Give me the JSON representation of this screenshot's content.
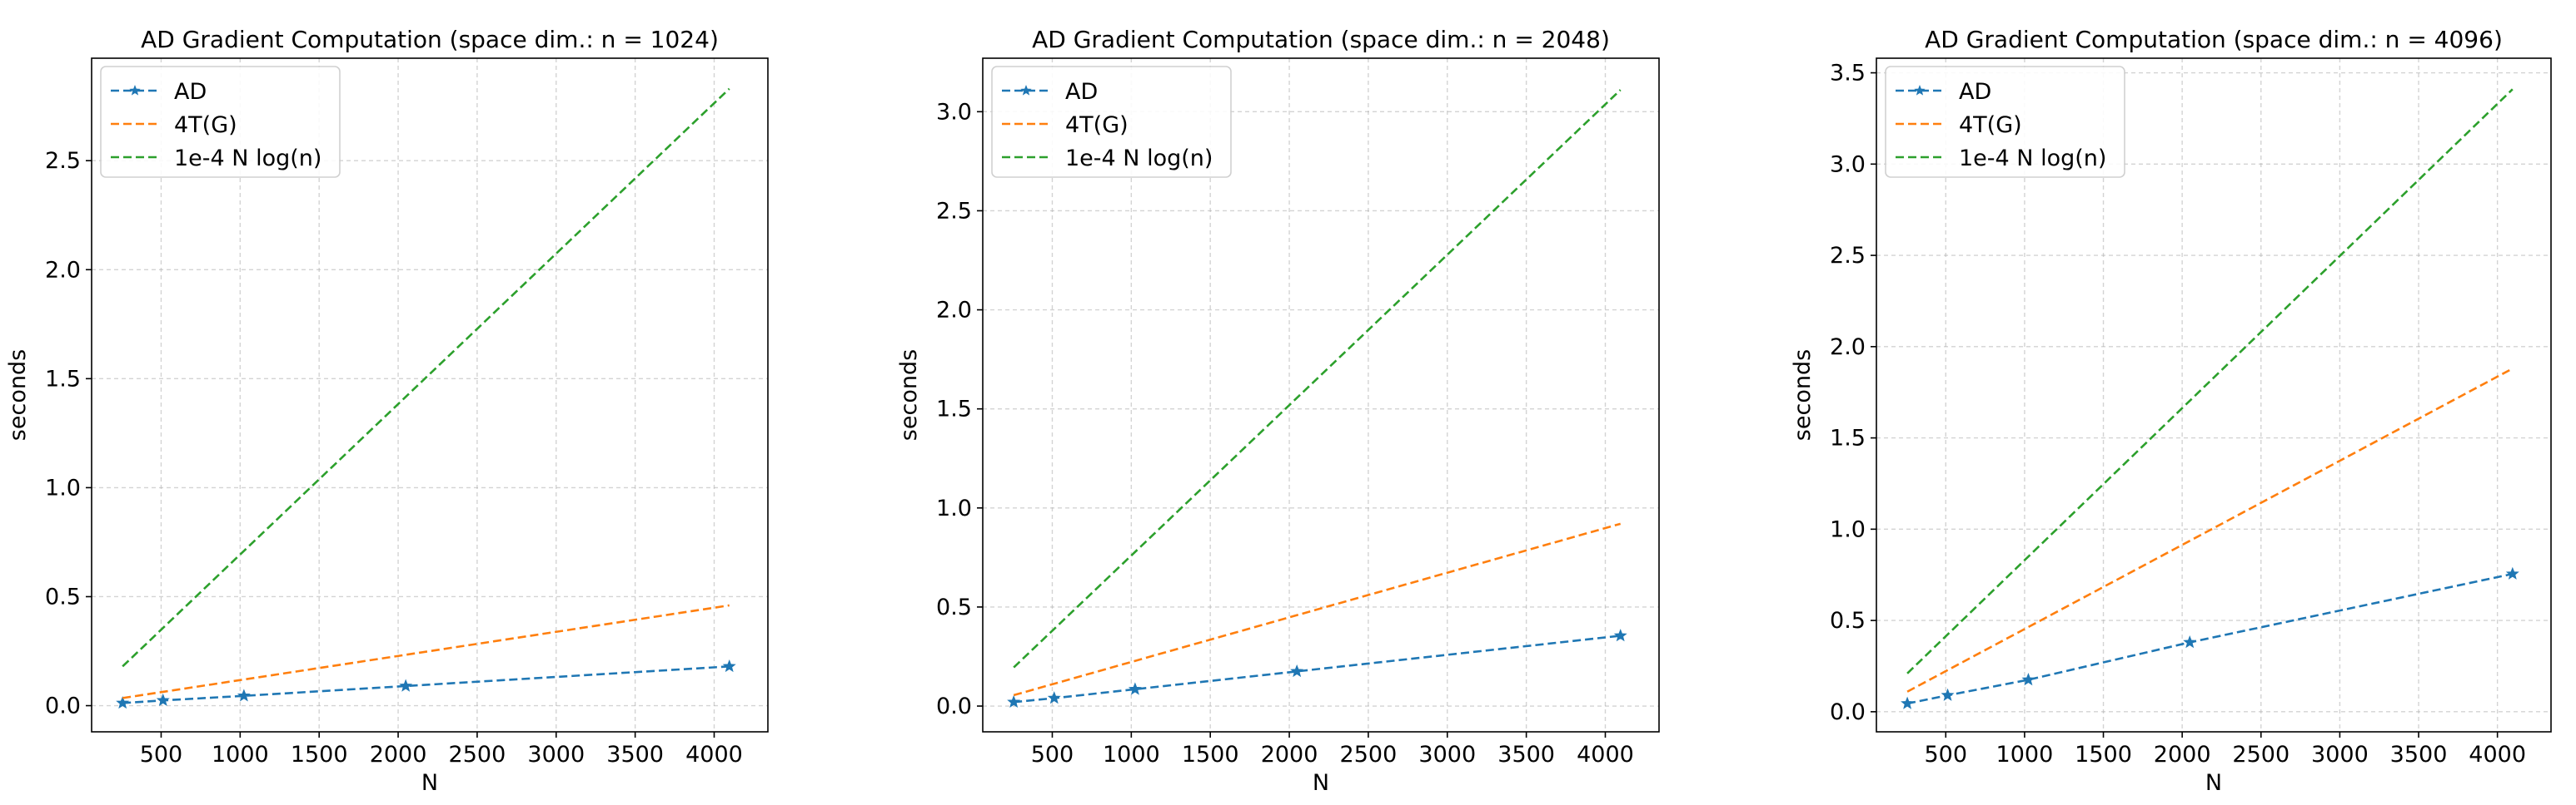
{
  "figure": {
    "background": "#ffffff"
  },
  "chart_data": [
    {
      "type": "line",
      "title": "AD Gradient Computation (space dim.: n = 1024)",
      "xlabel": "N",
      "ylabel": "seconds",
      "xlim": [
        60,
        4340
      ],
      "ylim": [
        -0.12,
        2.97
      ],
      "xticks": [
        500,
        1000,
        1500,
        2000,
        2500,
        3000,
        3500,
        4000
      ],
      "xtick_labels": [
        "500",
        "1000",
        "1500",
        "2000",
        "2500",
        "3000",
        "3500",
        "4000"
      ],
      "yticks": [
        0.0,
        0.5,
        1.0,
        1.5,
        2.0,
        2.5
      ],
      "ytick_labels": [
        "0.0",
        "0.5",
        "1.0",
        "1.5",
        "2.0",
        "2.5"
      ],
      "grid": true,
      "legend_position": "upper-left",
      "series": [
        {
          "name": "AD",
          "color": "#1f77b4",
          "marker": "star",
          "x": [
            256,
            512,
            1024,
            2048,
            4096
          ],
          "y": [
            0.012,
            0.024,
            0.045,
            0.09,
            0.18
          ]
        },
        {
          "name": "4T(G)",
          "color": "#ff7f0e",
          "marker": "none",
          "x": [
            256,
            4096
          ],
          "y": [
            0.035,
            0.46
          ]
        },
        {
          "name": "1e-4 N log(n)",
          "color": "#2ca02c",
          "marker": "none",
          "x": [
            256,
            4096
          ],
          "y": [
            0.18,
            2.83
          ]
        }
      ]
    },
    {
      "type": "line",
      "title": "AD Gradient Computation (space dim.: n = 2048)",
      "xlabel": "N",
      "ylabel": "seconds",
      "xlim": [
        60,
        4340
      ],
      "ylim": [
        -0.13,
        3.27
      ],
      "xticks": [
        500,
        1000,
        1500,
        2000,
        2500,
        3000,
        3500,
        4000
      ],
      "xtick_labels": [
        "500",
        "1000",
        "1500",
        "2000",
        "2500",
        "3000",
        "3500",
        "4000"
      ],
      "yticks": [
        0.0,
        0.5,
        1.0,
        1.5,
        2.0,
        2.5,
        3.0
      ],
      "ytick_labels": [
        "0.0",
        "0.5",
        "1.0",
        "1.5",
        "2.0",
        "2.5",
        "3.0"
      ],
      "grid": true,
      "legend_position": "upper-left",
      "series": [
        {
          "name": "AD",
          "color": "#1f77b4",
          "marker": "star",
          "x": [
            256,
            512,
            1024,
            2048,
            4096
          ],
          "y": [
            0.02,
            0.04,
            0.085,
            0.175,
            0.355
          ]
        },
        {
          "name": "4T(G)",
          "color": "#ff7f0e",
          "marker": "none",
          "x": [
            256,
            4096
          ],
          "y": [
            0.055,
            0.92
          ]
        },
        {
          "name": "1e-4 N log(n)",
          "color": "#2ca02c",
          "marker": "none",
          "x": [
            256,
            4096
          ],
          "y": [
            0.195,
            3.11
          ]
        }
      ]
    },
    {
      "type": "line",
      "title": "AD Gradient Computation (space dim.: n = 4096)",
      "xlabel": "N",
      "ylabel": "seconds",
      "xlim": [
        60,
        4340
      ],
      "ylim": [
        -0.11,
        3.58
      ],
      "xticks": [
        500,
        1000,
        1500,
        2000,
        2500,
        3000,
        3500,
        4000
      ],
      "xtick_labels": [
        "500",
        "1000",
        "1500",
        "2000",
        "2500",
        "3000",
        "3500",
        "4000"
      ],
      "yticks": [
        0.0,
        0.5,
        1.0,
        1.5,
        2.0,
        2.5,
        3.0,
        3.5
      ],
      "ytick_labels": [
        "0.0",
        "0.5",
        "1.0",
        "1.5",
        "2.0",
        "2.5",
        "3.0",
        "3.5"
      ],
      "grid": true,
      "legend_position": "upper-left",
      "series": [
        {
          "name": "AD",
          "color": "#1f77b4",
          "marker": "star",
          "x": [
            256,
            512,
            1024,
            2048,
            4096
          ],
          "y": [
            0.045,
            0.09,
            0.175,
            0.38,
            0.755
          ]
        },
        {
          "name": "4T(G)",
          "color": "#ff7f0e",
          "marker": "none",
          "x": [
            256,
            4096
          ],
          "y": [
            0.11,
            1.88
          ]
        },
        {
          "name": "1e-4 N log(n)",
          "color": "#2ca02c",
          "marker": "none",
          "x": [
            256,
            4096
          ],
          "y": [
            0.21,
            3.41
          ]
        }
      ]
    }
  ]
}
